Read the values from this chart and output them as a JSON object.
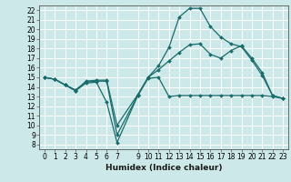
{
  "xlabel": "Humidex (Indice chaleur)",
  "bg_color": "#cce8e8",
  "grid_color": "#ffffff",
  "line_color": "#1a6b6b",
  "xlim": [
    -0.5,
    23.5
  ],
  "ylim": [
    7.5,
    22.5
  ],
  "xticks": [
    0,
    1,
    2,
    3,
    4,
    5,
    6,
    7,
    9,
    10,
    11,
    12,
    13,
    14,
    15,
    16,
    17,
    18,
    19,
    20,
    21,
    22,
    23
  ],
  "yticks": [
    8,
    9,
    10,
    11,
    12,
    13,
    14,
    15,
    16,
    17,
    18,
    19,
    20,
    21,
    22
  ],
  "line1_x": [
    0,
    1,
    2,
    3,
    4,
    5,
    6,
    7,
    9,
    10,
    11,
    12,
    13,
    14,
    15,
    16,
    17,
    18,
    19,
    20,
    21,
    22,
    23
  ],
  "line1_y": [
    15.0,
    14.8,
    14.2,
    13.6,
    14.4,
    14.5,
    12.4,
    8.2,
    13.1,
    14.9,
    15.0,
    13.0,
    13.1,
    13.1,
    13.1,
    13.1,
    13.1,
    13.1,
    13.1,
    13.1,
    13.1,
    13.0,
    12.8
  ],
  "line2_x": [
    0,
    1,
    2,
    3,
    4,
    5,
    6,
    7,
    9,
    10,
    11,
    12,
    13,
    14,
    15,
    16,
    17,
    18,
    19,
    20,
    21,
    22,
    23
  ],
  "line2_y": [
    15.0,
    14.8,
    14.2,
    13.6,
    14.6,
    14.7,
    14.7,
    10.0,
    13.2,
    15.0,
    16.2,
    18.1,
    21.3,
    22.2,
    22.2,
    20.3,
    19.2,
    18.5,
    18.2,
    16.8,
    15.2,
    13.1,
    12.8
  ],
  "line3_x": [
    0,
    1,
    2,
    3,
    4,
    5,
    6,
    7,
    9,
    10,
    11,
    12,
    13,
    14,
    15,
    16,
    17,
    18,
    19,
    20,
    21,
    22,
    23
  ],
  "line3_y": [
    15.0,
    14.8,
    14.2,
    13.7,
    14.5,
    14.6,
    14.6,
    9.0,
    13.1,
    15.0,
    15.8,
    16.7,
    17.6,
    18.4,
    18.5,
    17.4,
    17.0,
    17.8,
    18.3,
    17.0,
    15.5,
    13.1,
    12.8
  ],
  "tick_fontsize": 5.5,
  "xlabel_fontsize": 6.5
}
